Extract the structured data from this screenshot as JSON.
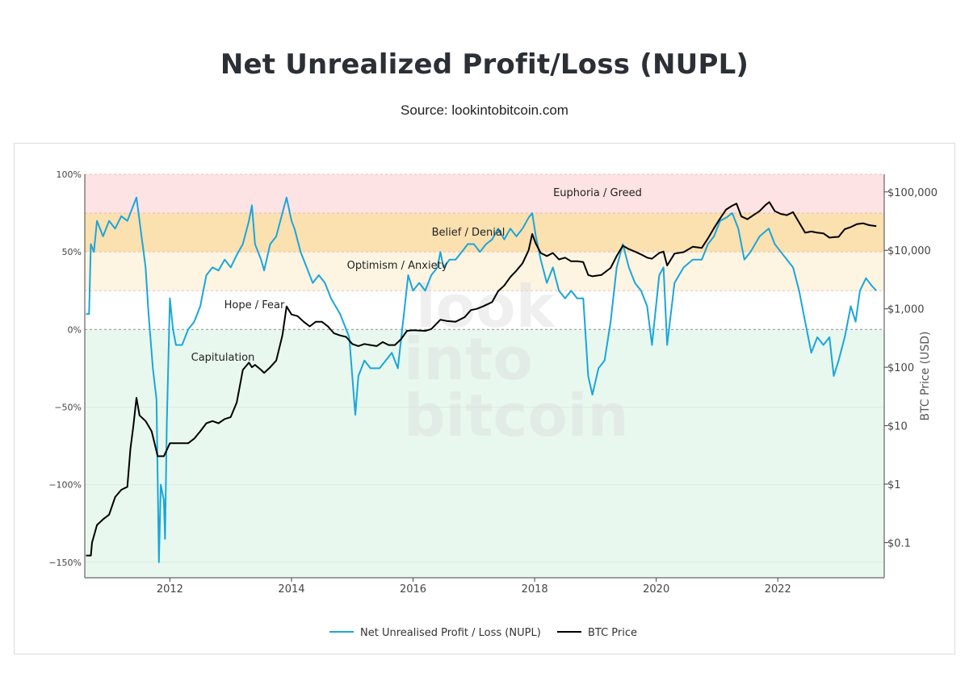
{
  "page": {
    "title": "Net Unrealized Profit/Loss (NUPL)",
    "subtitle": "Source: lookintobitcoin.com"
  },
  "watermark": [
    "look",
    "into",
    "bitcoin"
  ],
  "colors": {
    "nupl": "#1aa6dc",
    "price": "#000000",
    "euphoria": "#fde3e3",
    "belief": "#fbe0b0",
    "optimism": "#fdf4e1",
    "hope": "#ffffff",
    "capitulation": "#e8f8ee"
  },
  "chart_data": {
    "type": "line",
    "title": "",
    "x_range": [
      2010.6,
      2023.75
    ],
    "x_ticks": [
      "2012",
      "2014",
      "2016",
      "2018",
      "2020",
      "2022"
    ],
    "y_left": {
      "label": "",
      "range": [
        -160,
        100
      ],
      "unit": "%",
      "ticks": [
        "100%",
        "50%",
        "0%",
        "−50%",
        "−100%",
        "−150%"
      ]
    },
    "y_right": {
      "label": "BTC Price (USD)",
      "scale": "log",
      "range": [
        0.025,
        200000
      ],
      "ticks": [
        "$100,000",
        "$10,000",
        "$1,000",
        "$100",
        "$10",
        "$1",
        "$0.1"
      ]
    },
    "zones": [
      {
        "name": "Euphoria / Greed",
        "from": 75,
        "to": 100,
        "color": "#fde3e3"
      },
      {
        "name": "Belief / Denial",
        "from": 50,
        "to": 75,
        "color": "#fbe0b0"
      },
      {
        "name": "Optimism / Anxiety",
        "from": 25,
        "to": 50,
        "color": "#fdf4e1"
      },
      {
        "name": "Hope / Fear",
        "from": 0,
        "to": 25,
        "color": "#ffffff"
      },
      {
        "name": "Capitulation",
        "from": -160,
        "to": 0,
        "color": "#e8f8ee"
      }
    ],
    "series": [
      {
        "name": "Net Unrealised Profit / Loss (NUPL)",
        "axis": "left",
        "points": [
          [
            2010.62,
            10
          ],
          [
            2010.67,
            10
          ],
          [
            2010.7,
            55
          ],
          [
            2010.75,
            50
          ],
          [
            2010.8,
            70
          ],
          [
            2010.9,
            60
          ],
          [
            2011.0,
            70
          ],
          [
            2011.1,
            65
          ],
          [
            2011.2,
            73
          ],
          [
            2011.3,
            70
          ],
          [
            2011.4,
            80
          ],
          [
            2011.45,
            85
          ],
          [
            2011.5,
            70
          ],
          [
            2011.6,
            40
          ],
          [
            2011.65,
            10
          ],
          [
            2011.72,
            -25
          ],
          [
            2011.78,
            -45
          ],
          [
            2011.82,
            -150
          ],
          [
            2011.85,
            -100
          ],
          [
            2011.9,
            -110
          ],
          [
            2011.92,
            -135
          ],
          [
            2011.95,
            -60
          ],
          [
            2012.0,
            20
          ],
          [
            2012.05,
            0
          ],
          [
            2012.1,
            -10
          ],
          [
            2012.2,
            -10
          ],
          [
            2012.3,
            0
          ],
          [
            2012.4,
            5
          ],
          [
            2012.5,
            15
          ],
          [
            2012.6,
            35
          ],
          [
            2012.7,
            40
          ],
          [
            2012.8,
            38
          ],
          [
            2012.9,
            45
          ],
          [
            2013.0,
            40
          ],
          [
            2013.1,
            48
          ],
          [
            2013.2,
            55
          ],
          [
            2013.3,
            70
          ],
          [
            2013.35,
            80
          ],
          [
            2013.4,
            55
          ],
          [
            2013.5,
            45
          ],
          [
            2013.55,
            38
          ],
          [
            2013.65,
            55
          ],
          [
            2013.75,
            60
          ],
          [
            2013.85,
            75
          ],
          [
            2013.92,
            85
          ],
          [
            2014.0,
            70
          ],
          [
            2014.05,
            65
          ],
          [
            2014.15,
            50
          ],
          [
            2014.25,
            40
          ],
          [
            2014.35,
            30
          ],
          [
            2014.45,
            35
          ],
          [
            2014.55,
            30
          ],
          [
            2014.65,
            20
          ],
          [
            2014.8,
            10
          ],
          [
            2014.95,
            -5
          ],
          [
            2015.05,
            -55
          ],
          [
            2015.1,
            -30
          ],
          [
            2015.2,
            -20
          ],
          [
            2015.3,
            -25
          ],
          [
            2015.45,
            -25
          ],
          [
            2015.55,
            -20
          ],
          [
            2015.65,
            -15
          ],
          [
            2015.75,
            -25
          ],
          [
            2015.85,
            10
          ],
          [
            2015.92,
            35
          ],
          [
            2016.0,
            25
          ],
          [
            2016.1,
            30
          ],
          [
            2016.2,
            25
          ],
          [
            2016.3,
            35
          ],
          [
            2016.4,
            40
          ],
          [
            2016.45,
            50
          ],
          [
            2016.5,
            40
          ],
          [
            2016.6,
            45
          ],
          [
            2016.7,
            45
          ],
          [
            2016.8,
            50
          ],
          [
            2016.9,
            55
          ],
          [
            2017.0,
            55
          ],
          [
            2017.1,
            50
          ],
          [
            2017.2,
            55
          ],
          [
            2017.3,
            58
          ],
          [
            2017.4,
            65
          ],
          [
            2017.5,
            58
          ],
          [
            2017.6,
            65
          ],
          [
            2017.7,
            60
          ],
          [
            2017.8,
            65
          ],
          [
            2017.9,
            72
          ],
          [
            2017.96,
            75
          ],
          [
            2018.02,
            60
          ],
          [
            2018.1,
            45
          ],
          [
            2018.2,
            30
          ],
          [
            2018.3,
            40
          ],
          [
            2018.4,
            25
          ],
          [
            2018.5,
            20
          ],
          [
            2018.6,
            25
          ],
          [
            2018.7,
            20
          ],
          [
            2018.8,
            20
          ],
          [
            2018.88,
            -30
          ],
          [
            2018.95,
            -42
          ],
          [
            2019.05,
            -25
          ],
          [
            2019.15,
            -20
          ],
          [
            2019.25,
            5
          ],
          [
            2019.35,
            40
          ],
          [
            2019.45,
            55
          ],
          [
            2019.55,
            40
          ],
          [
            2019.65,
            30
          ],
          [
            2019.75,
            25
          ],
          [
            2019.85,
            15
          ],
          [
            2019.93,
            -10
          ],
          [
            2020.05,
            35
          ],
          [
            2020.12,
            40
          ],
          [
            2020.18,
            -10
          ],
          [
            2020.3,
            30
          ],
          [
            2020.45,
            40
          ],
          [
            2020.6,
            45
          ],
          [
            2020.75,
            45
          ],
          [
            2020.85,
            55
          ],
          [
            2020.95,
            60
          ],
          [
            2021.05,
            70
          ],
          [
            2021.15,
            72
          ],
          [
            2021.25,
            75
          ],
          [
            2021.35,
            65
          ],
          [
            2021.45,
            45
          ],
          [
            2021.55,
            50
          ],
          [
            2021.7,
            60
          ],
          [
            2021.85,
            65
          ],
          [
            2021.95,
            55
          ],
          [
            2022.05,
            50
          ],
          [
            2022.15,
            45
          ],
          [
            2022.25,
            40
          ],
          [
            2022.35,
            25
          ],
          [
            2022.45,
            5
          ],
          [
            2022.55,
            -15
          ],
          [
            2022.65,
            -5
          ],
          [
            2022.75,
            -10
          ],
          [
            2022.85,
            -5
          ],
          [
            2022.92,
            -30
          ],
          [
            2023.0,
            -20
          ],
          [
            2023.1,
            -5
          ],
          [
            2023.2,
            15
          ],
          [
            2023.28,
            5
          ],
          [
            2023.35,
            25
          ],
          [
            2023.45,
            33
          ],
          [
            2023.55,
            28
          ],
          [
            2023.62,
            25
          ]
        ]
      },
      {
        "name": "BTC Price",
        "axis": "right",
        "points": [
          [
            2010.62,
            0.06
          ],
          [
            2010.7,
            0.06
          ],
          [
            2010.72,
            0.1
          ],
          [
            2010.8,
            0.2
          ],
          [
            2010.9,
            0.25
          ],
          [
            2011.0,
            0.3
          ],
          [
            2011.1,
            0.6
          ],
          [
            2011.2,
            0.8
          ],
          [
            2011.3,
            0.9
          ],
          [
            2011.35,
            4
          ],
          [
            2011.4,
            10
          ],
          [
            2011.45,
            30
          ],
          [
            2011.5,
            15
          ],
          [
            2011.6,
            12
          ],
          [
            2011.7,
            8
          ],
          [
            2011.8,
            3
          ],
          [
            2011.9,
            3
          ],
          [
            2012.0,
            5
          ],
          [
            2012.1,
            5
          ],
          [
            2012.2,
            5
          ],
          [
            2012.3,
            5
          ],
          [
            2012.4,
            6
          ],
          [
            2012.5,
            8
          ],
          [
            2012.6,
            11
          ],
          [
            2012.7,
            12
          ],
          [
            2012.8,
            11
          ],
          [
            2012.9,
            13
          ],
          [
            2013.0,
            14
          ],
          [
            2013.1,
            25
          ],
          [
            2013.2,
            90
          ],
          [
            2013.3,
            120
          ],
          [
            2013.35,
            100
          ],
          [
            2013.4,
            110
          ],
          [
            2013.5,
            90
          ],
          [
            2013.55,
            80
          ],
          [
            2013.65,
            100
          ],
          [
            2013.75,
            130
          ],
          [
            2013.85,
            350
          ],
          [
            2013.92,
            1100
          ],
          [
            2014.0,
            800
          ],
          [
            2014.1,
            750
          ],
          [
            2014.2,
            600
          ],
          [
            2014.3,
            500
          ],
          [
            2014.4,
            600
          ],
          [
            2014.5,
            600
          ],
          [
            2014.6,
            500
          ],
          [
            2014.7,
            380
          ],
          [
            2014.8,
            350
          ],
          [
            2014.9,
            330
          ],
          [
            2015.0,
            250
          ],
          [
            2015.1,
            230
          ],
          [
            2015.2,
            250
          ],
          [
            2015.3,
            240
          ],
          [
            2015.4,
            230
          ],
          [
            2015.5,
            270
          ],
          [
            2015.6,
            240
          ],
          [
            2015.7,
            240
          ],
          [
            2015.8,
            300
          ],
          [
            2015.9,
            420
          ],
          [
            2016.0,
            430
          ],
          [
            2016.2,
            420
          ],
          [
            2016.3,
            450
          ],
          [
            2016.45,
            650
          ],
          [
            2016.55,
            620
          ],
          [
            2016.7,
            600
          ],
          [
            2016.85,
            720
          ],
          [
            2016.95,
            950
          ],
          [
            2017.05,
            1000
          ],
          [
            2017.15,
            1100
          ],
          [
            2017.3,
            1300
          ],
          [
            2017.4,
            2000
          ],
          [
            2017.5,
            2500
          ],
          [
            2017.6,
            3500
          ],
          [
            2017.7,
            4500
          ],
          [
            2017.8,
            6000
          ],
          [
            2017.9,
            10000
          ],
          [
            2017.96,
            19000
          ],
          [
            2018.02,
            13000
          ],
          [
            2018.1,
            9000
          ],
          [
            2018.2,
            8000
          ],
          [
            2018.3,
            9000
          ],
          [
            2018.4,
            7000
          ],
          [
            2018.5,
            7500
          ],
          [
            2018.6,
            6500
          ],
          [
            2018.7,
            6500
          ],
          [
            2018.8,
            6300
          ],
          [
            2018.88,
            3800
          ],
          [
            2018.95,
            3600
          ],
          [
            2019.1,
            3800
          ],
          [
            2019.25,
            5000
          ],
          [
            2019.35,
            8000
          ],
          [
            2019.45,
            12000
          ],
          [
            2019.55,
            10500
          ],
          [
            2019.65,
            9500
          ],
          [
            2019.75,
            8500
          ],
          [
            2019.85,
            7500
          ],
          [
            2019.93,
            7200
          ],
          [
            2020.05,
            9000
          ],
          [
            2020.12,
            9500
          ],
          [
            2020.18,
            5500
          ],
          [
            2020.3,
            8800
          ],
          [
            2020.45,
            9300
          ],
          [
            2020.6,
            11500
          ],
          [
            2020.75,
            11000
          ],
          [
            2020.85,
            16000
          ],
          [
            2020.95,
            24000
          ],
          [
            2021.05,
            35000
          ],
          [
            2021.15,
            50000
          ],
          [
            2021.25,
            58000
          ],
          [
            2021.32,
            63000
          ],
          [
            2021.4,
            38000
          ],
          [
            2021.5,
            34000
          ],
          [
            2021.6,
            40000
          ],
          [
            2021.7,
            47000
          ],
          [
            2021.8,
            60000
          ],
          [
            2021.86,
            67000
          ],
          [
            2021.95,
            47000
          ],
          [
            2022.05,
            42000
          ],
          [
            2022.15,
            40000
          ],
          [
            2022.25,
            45000
          ],
          [
            2022.35,
            30000
          ],
          [
            2022.45,
            20000
          ],
          [
            2022.55,
            21000
          ],
          [
            2022.65,
            20000
          ],
          [
            2022.75,
            19500
          ],
          [
            2022.85,
            16500
          ],
          [
            2022.92,
            16800
          ],
          [
            2023.0,
            17000
          ],
          [
            2023.1,
            23000
          ],
          [
            2023.2,
            25000
          ],
          [
            2023.3,
            28000
          ],
          [
            2023.4,
            29000
          ],
          [
            2023.5,
            27000
          ],
          [
            2023.62,
            26000
          ]
        ]
      }
    ],
    "legend": {
      "position": "bottom-center"
    }
  }
}
